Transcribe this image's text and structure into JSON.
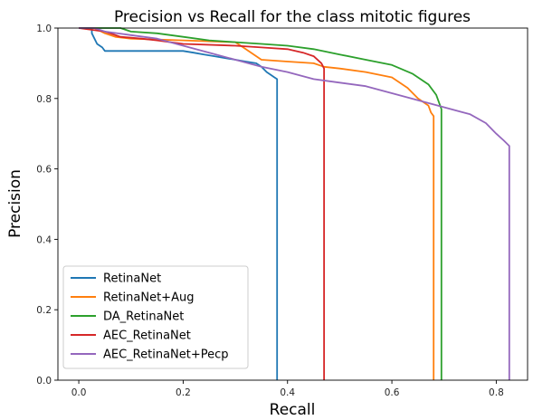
{
  "chart_data": {
    "type": "line",
    "title": "Precision vs Recall for the class mitotic figures",
    "xlabel": "Recall",
    "ylabel": "Precision",
    "xlim": [
      -0.04,
      0.86
    ],
    "ylim": [
      0.0,
      1.0
    ],
    "xticks": [
      0.0,
      0.2,
      0.4,
      0.6,
      0.8
    ],
    "xtick_labels": [
      "0.0",
      "0.2",
      "0.4",
      "0.6",
      "0.8"
    ],
    "yticks": [
      0.0,
      0.2,
      0.4,
      0.6,
      0.8,
      1.0
    ],
    "ytick_labels": [
      "0.0",
      "0.2",
      "0.4",
      "0.6",
      "0.8",
      "1.0"
    ],
    "grid": false,
    "legend_position": "lower-left",
    "series": [
      {
        "name": "RetinaNet",
        "color": "#1f77b4",
        "points": [
          [
            0.0,
            1.0
          ],
          [
            0.025,
            1.0
          ],
          [
            0.025,
            0.985
          ],
          [
            0.03,
            0.97
          ],
          [
            0.035,
            0.955
          ],
          [
            0.045,
            0.945
          ],
          [
            0.05,
            0.935
          ],
          [
            0.07,
            0.935
          ],
          [
            0.1,
            0.935
          ],
          [
            0.15,
            0.935
          ],
          [
            0.2,
            0.935
          ],
          [
            0.22,
            0.93
          ],
          [
            0.24,
            0.925
          ],
          [
            0.26,
            0.92
          ],
          [
            0.28,
            0.915
          ],
          [
            0.3,
            0.91
          ],
          [
            0.32,
            0.905
          ],
          [
            0.34,
            0.9
          ],
          [
            0.35,
            0.89
          ],
          [
            0.36,
            0.875
          ],
          [
            0.37,
            0.865
          ],
          [
            0.375,
            0.86
          ],
          [
            0.38,
            0.855
          ],
          [
            0.38,
            0.0
          ]
        ]
      },
      {
        "name": "RetinaNet+Aug",
        "color": "#ff7f0e",
        "points": [
          [
            0.0,
            1.0
          ],
          [
            0.03,
            1.0
          ],
          [
            0.05,
            0.985
          ],
          [
            0.07,
            0.975
          ],
          [
            0.1,
            0.97
          ],
          [
            0.2,
            0.965
          ],
          [
            0.3,
            0.96
          ],
          [
            0.32,
            0.94
          ],
          [
            0.35,
            0.91
          ],
          [
            0.4,
            0.905
          ],
          [
            0.45,
            0.9
          ],
          [
            0.47,
            0.89
          ],
          [
            0.5,
            0.885
          ],
          [
            0.55,
            0.875
          ],
          [
            0.6,
            0.86
          ],
          [
            0.63,
            0.83
          ],
          [
            0.65,
            0.8
          ],
          [
            0.67,
            0.78
          ],
          [
            0.675,
            0.76
          ],
          [
            0.68,
            0.75
          ],
          [
            0.68,
            0.0
          ]
        ]
      },
      {
        "name": "DA_RetinaNet",
        "color": "#2ca02c",
        "points": [
          [
            0.0,
            1.0
          ],
          [
            0.08,
            1.0
          ],
          [
            0.1,
            0.99
          ],
          [
            0.15,
            0.985
          ],
          [
            0.2,
            0.975
          ],
          [
            0.25,
            0.965
          ],
          [
            0.3,
            0.96
          ],
          [
            0.35,
            0.955
          ],
          [
            0.4,
            0.95
          ],
          [
            0.45,
            0.94
          ],
          [
            0.5,
            0.925
          ],
          [
            0.55,
            0.91
          ],
          [
            0.6,
            0.895
          ],
          [
            0.64,
            0.87
          ],
          [
            0.67,
            0.84
          ],
          [
            0.685,
            0.81
          ],
          [
            0.695,
            0.77
          ],
          [
            0.695,
            0.0
          ]
        ]
      },
      {
        "name": "AEC_RetinaNet",
        "color": "#d62728",
        "points": [
          [
            0.0,
            1.0
          ],
          [
            0.05,
            0.99
          ],
          [
            0.08,
            0.975
          ],
          [
            0.12,
            0.97
          ],
          [
            0.15,
            0.965
          ],
          [
            0.2,
            0.955
          ],
          [
            0.3,
            0.95
          ],
          [
            0.35,
            0.945
          ],
          [
            0.4,
            0.94
          ],
          [
            0.43,
            0.93
          ],
          [
            0.45,
            0.92
          ],
          [
            0.465,
            0.9
          ],
          [
            0.47,
            0.885
          ],
          [
            0.47,
            0.0
          ]
        ]
      },
      {
        "name": "AEC_RetinaNet+Pecp",
        "color": "#9467bd",
        "points": [
          [
            0.0,
            1.0
          ],
          [
            0.03,
            1.0
          ],
          [
            0.05,
            0.99
          ],
          [
            0.1,
            0.98
          ],
          [
            0.15,
            0.97
          ],
          [
            0.2,
            0.95
          ],
          [
            0.25,
            0.93
          ],
          [
            0.3,
            0.91
          ],
          [
            0.35,
            0.89
          ],
          [
            0.4,
            0.875
          ],
          [
            0.45,
            0.855
          ],
          [
            0.5,
            0.845
          ],
          [
            0.55,
            0.835
          ],
          [
            0.6,
            0.815
          ],
          [
            0.65,
            0.795
          ],
          [
            0.7,
            0.775
          ],
          [
            0.75,
            0.755
          ],
          [
            0.78,
            0.73
          ],
          [
            0.8,
            0.7
          ],
          [
            0.815,
            0.68
          ],
          [
            0.825,
            0.665
          ],
          [
            0.825,
            0.0
          ]
        ]
      }
    ]
  }
}
